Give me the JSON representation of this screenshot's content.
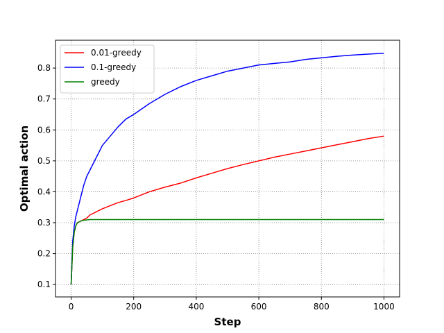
{
  "chart_data": {
    "type": "line",
    "title": "",
    "xlabel": "Step",
    "ylabel": "Optimal action",
    "xlim": [
      -50,
      1050
    ],
    "ylim": [
      0.06,
      0.89
    ],
    "xticks": [
      0,
      200,
      400,
      600,
      800,
      1000
    ],
    "yticks": [
      0.1,
      0.2,
      0.3,
      0.4,
      0.5,
      0.6,
      0.7,
      0.8
    ],
    "grid": true,
    "legend_position": "top-left",
    "series": [
      {
        "name": "0.01-greedy",
        "color": "#ff0000",
        "x": [
          0,
          5,
          10,
          15,
          20,
          30,
          40,
          50,
          60,
          80,
          100,
          125,
          150,
          175,
          200,
          250,
          300,
          350,
          400,
          450,
          500,
          550,
          600,
          650,
          700,
          750,
          800,
          850,
          900,
          950,
          1000
        ],
        "y": [
          0.1,
          0.22,
          0.27,
          0.29,
          0.3,
          0.305,
          0.31,
          0.315,
          0.325,
          0.335,
          0.345,
          0.355,
          0.365,
          0.372,
          0.38,
          0.4,
          0.415,
          0.428,
          0.445,
          0.46,
          0.475,
          0.488,
          0.5,
          0.512,
          0.522,
          0.532,
          0.542,
          0.552,
          0.562,
          0.572,
          0.58
        ]
      },
      {
        "name": "0.1-greedy",
        "color": "#0000ff",
        "x": [
          0,
          5,
          10,
          15,
          20,
          30,
          40,
          50,
          60,
          80,
          100,
          125,
          150,
          175,
          200,
          250,
          300,
          350,
          400,
          450,
          500,
          550,
          600,
          650,
          700,
          750,
          800,
          850,
          900,
          950,
          1000
        ],
        "y": [
          0.1,
          0.24,
          0.29,
          0.32,
          0.34,
          0.38,
          0.42,
          0.45,
          0.47,
          0.51,
          0.55,
          0.58,
          0.61,
          0.635,
          0.65,
          0.685,
          0.715,
          0.74,
          0.76,
          0.775,
          0.79,
          0.8,
          0.81,
          0.815,
          0.82,
          0.828,
          0.833,
          0.838,
          0.842,
          0.845,
          0.848
        ]
      },
      {
        "name": "greedy",
        "color": "#008000",
        "x": [
          0,
          5,
          10,
          15,
          20,
          30,
          40,
          50,
          60,
          80,
          100,
          200,
          300,
          400,
          500,
          600,
          700,
          800,
          900,
          1000
        ],
        "y": [
          0.1,
          0.22,
          0.27,
          0.29,
          0.3,
          0.305,
          0.308,
          0.309,
          0.31,
          0.31,
          0.31,
          0.31,
          0.31,
          0.31,
          0.31,
          0.31,
          0.31,
          0.31,
          0.31,
          0.31
        ]
      }
    ]
  }
}
